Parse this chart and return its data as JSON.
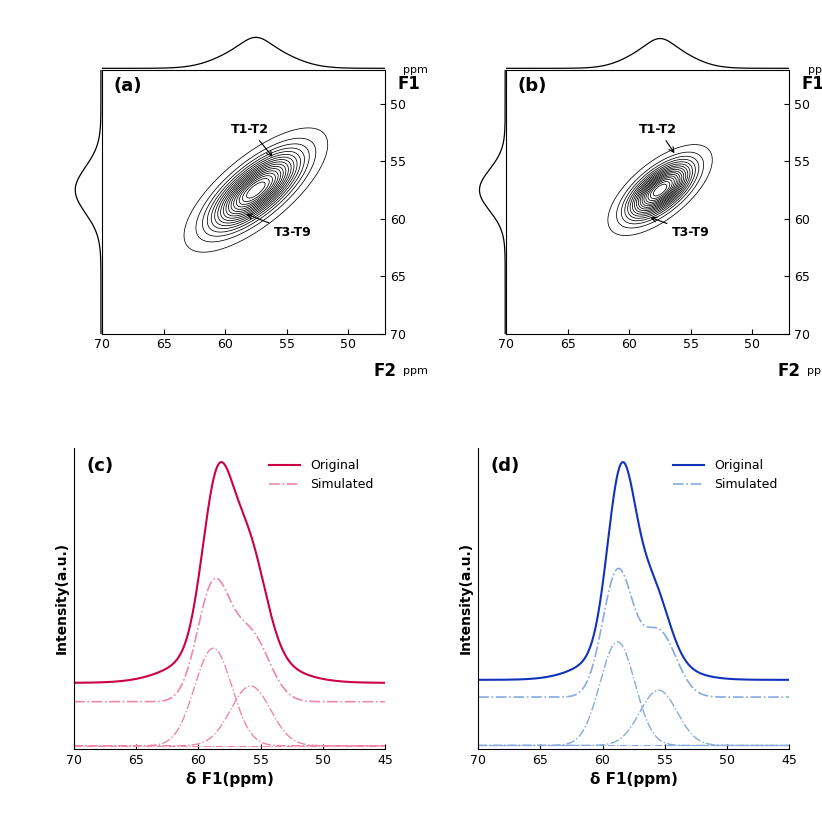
{
  "panel_labels": [
    "(a)",
    "(b)",
    "(c)",
    "(d)"
  ],
  "contour_xticks": [
    70,
    65,
    60,
    55,
    50
  ],
  "contour_yticks": [
    50,
    55,
    60,
    65,
    70
  ],
  "spec_xticks": [
    70,
    65,
    60,
    55,
    50,
    45
  ],
  "xlabel_contour_x": "F2",
  "xlabel_contour_y": "F1",
  "xlabel_spec": "δ F1(ppm)",
  "ylabel_spec": "Intensity(a.u.)",
  "color_c": "#cc0044",
  "color_d": "#1133bb",
  "color_c_light": "#ee88aa",
  "color_d_light": "#88aadd",
  "legend_original": "Original",
  "legend_simulated": "Simulated",
  "annotation_t1t2": "T1-T2",
  "annotation_t3t9": "T3-T9",
  "contour_levels": 18,
  "background_color": "#ffffff"
}
